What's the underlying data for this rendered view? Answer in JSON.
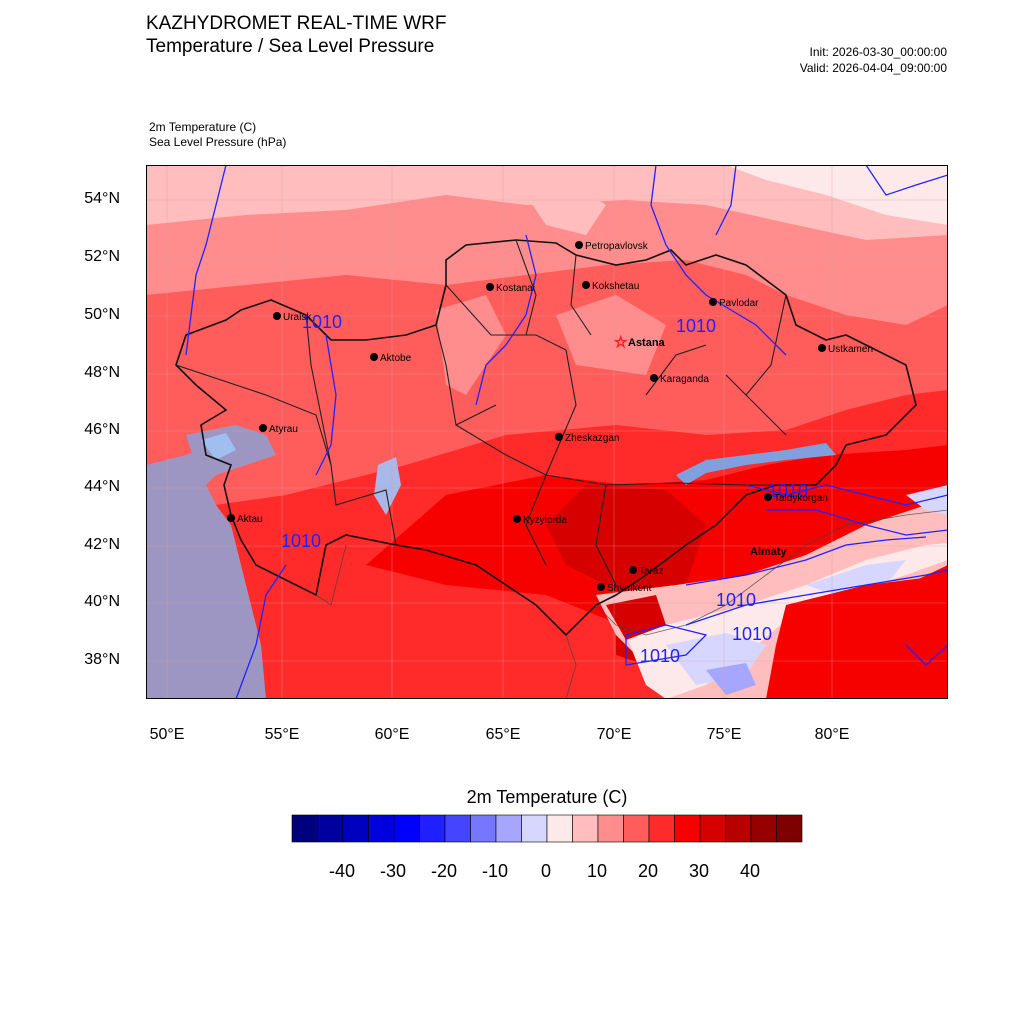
{
  "header": {
    "title": "KAZHYDROMET REAL-TIME WRF",
    "subtitle": "Temperature / Sea Level Pressure",
    "init": "Init: 2026-03-30_00:00:00",
    "valid": "Valid: 2026-04-04_09:00:00"
  },
  "variables": {
    "var1": "2m Temperature   (C)",
    "var2": "Sea Level Pressure   (hPa)"
  },
  "axes": {
    "lat_labels": [
      "54°N",
      "52°N",
      "50°N",
      "48°N",
      "46°N",
      "44°N",
      "42°N",
      "40°N",
      "38°N"
    ],
    "lon_labels": [
      "50°E",
      "55°E",
      "60°E",
      "65°E",
      "70°E",
      "75°E",
      "80°E"
    ]
  },
  "cities": [
    {
      "name": "Petropavlovsk",
      "bold": false
    },
    {
      "name": "Kostanai",
      "bold": false
    },
    {
      "name": "Kokshetau",
      "bold": false
    },
    {
      "name": "Pavlodar",
      "bold": false
    },
    {
      "name": "Uralsk",
      "bold": false
    },
    {
      "name": "Astana",
      "bold": true,
      "capital": true
    },
    {
      "name": "Aktobe",
      "bold": false
    },
    {
      "name": "Ustkamen",
      "bold": false
    },
    {
      "name": "Karaganda",
      "bold": false
    },
    {
      "name": "Atyrau",
      "bold": false
    },
    {
      "name": "Zheskazgan",
      "bold": false
    },
    {
      "name": "Taldykorgan",
      "bold": false
    },
    {
      "name": "Aktau",
      "bold": false
    },
    {
      "name": "Kyzylorda",
      "bold": false
    },
    {
      "name": "Almaty",
      "bold": true
    },
    {
      "name": "Taraz",
      "bold": false
    },
    {
      "name": "Shymkent",
      "bold": false
    }
  ],
  "isobar_label": "1010",
  "colorbar": {
    "title": "2m Temperature  (C)",
    "colors": [
      "#00007f",
      "#00009f",
      "#0000bf",
      "#0000df",
      "#0000ff",
      "#1f1fff",
      "#4545ff",
      "#7676ff",
      "#a6a6ff",
      "#d6d6ff",
      "#fde9e9",
      "#ffbdbd",
      "#ff8d8d",
      "#ff5c5c",
      "#ff2a2a",
      "#f70000",
      "#d70000",
      "#b70000",
      "#970000",
      "#7f0000"
    ],
    "labels": [
      "-40",
      "-30",
      "-20",
      "-10",
      "0",
      "10",
      "20",
      "30",
      "40"
    ]
  }
}
